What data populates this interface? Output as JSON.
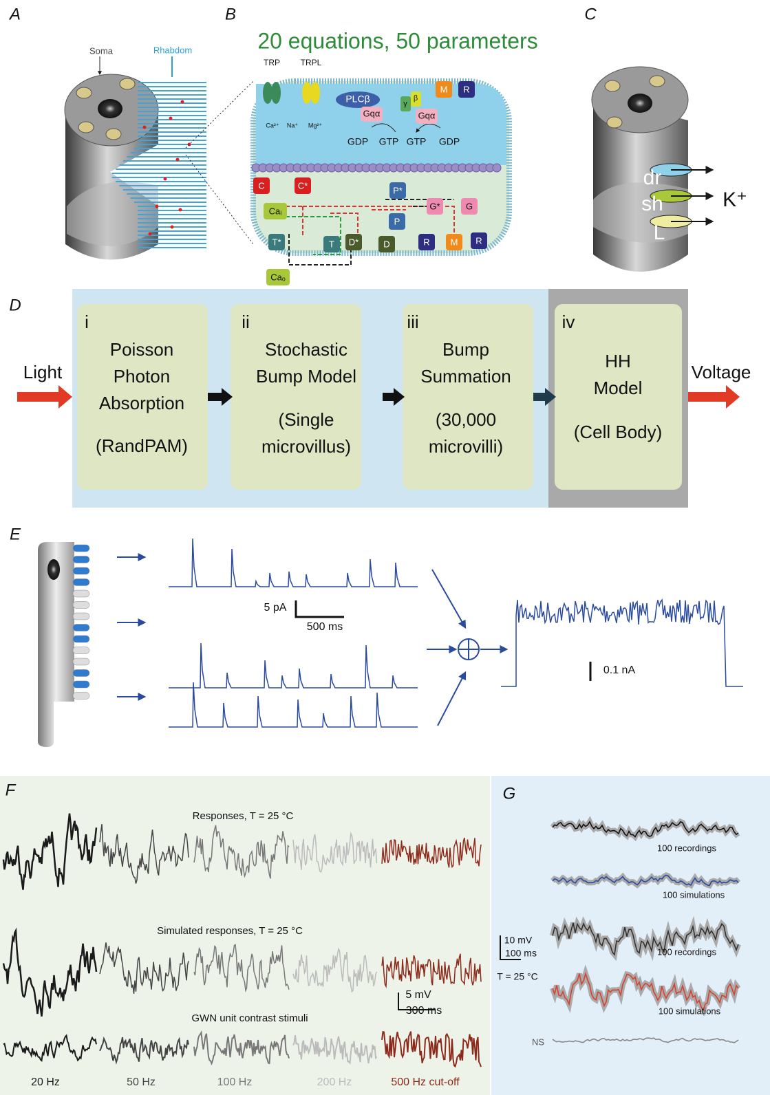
{
  "panel_labels": [
    "A",
    "B",
    "C",
    "D",
    "E",
    "F",
    "G"
  ],
  "panel_a": {
    "soma": "Soma",
    "rhabdom": "Rhabdom"
  },
  "panel_b": {
    "title": "20 equations, 50 parameters",
    "channels": [
      "TRP",
      "TRPL"
    ],
    "ions": [
      "Ca²⁺",
      "Na⁺",
      "Mg²⁺"
    ],
    "plc": "PLCβ",
    "gq": [
      "Gqα",
      "Gqα"
    ],
    "subunits": [
      "γ",
      "β"
    ],
    "nucleotides": [
      "GDP",
      "GTP",
      "GTP",
      "GDP"
    ],
    "states": [
      "M",
      "R",
      "C",
      "C*",
      "Caᵢ",
      "T*",
      "T",
      "D*",
      "D",
      "P*",
      "P",
      "G*",
      "G",
      "R",
      "M",
      "R",
      "Caₒ"
    ]
  },
  "panel_c": {
    "channels": [
      "dr",
      "sh",
      "L"
    ],
    "ion": "K⁺"
  },
  "panel_d": {
    "input": "Light",
    "output": "Voltage",
    "stages": [
      {
        "numeral": "i",
        "lines": [
          "Poisson",
          "Photon",
          "Absorption",
          "(RandPAM)"
        ]
      },
      {
        "numeral": "ii",
        "lines": [
          "Stochastic",
          "Bump Model",
          "(Single",
          "microvillus)"
        ]
      },
      {
        "numeral": "iii",
        "lines": [
          "Bump",
          "Summation",
          "(30,000",
          "microvilli)"
        ]
      },
      {
        "numeral": "iv",
        "lines": [
          "HH",
          "Model",
          "(Cell Body)"
        ]
      }
    ]
  },
  "panel_e": {
    "scale_current": "5 pA",
    "scale_time": "500 ms",
    "scale_sum": "0.1 nA"
  },
  "panel_f": {
    "titles": [
      "Responses, T = 25 °C",
      "Simulated responses, T = 25 °C",
      "GWN unit contrast stimuli"
    ],
    "scale": [
      "5 mV",
      "300 ms"
    ],
    "bands": [
      "20 Hz",
      "50 Hz",
      "100 Hz",
      "200 Hz",
      "500 Hz cut-off"
    ]
  },
  "panel_g": {
    "trace_labels": [
      "100 recordings",
      "100 simulations",
      "100 recordings",
      "100 simulations",
      "NS"
    ],
    "scale": [
      "10 mV",
      "100 ms"
    ],
    "temperature": "T = 25 °C"
  }
}
